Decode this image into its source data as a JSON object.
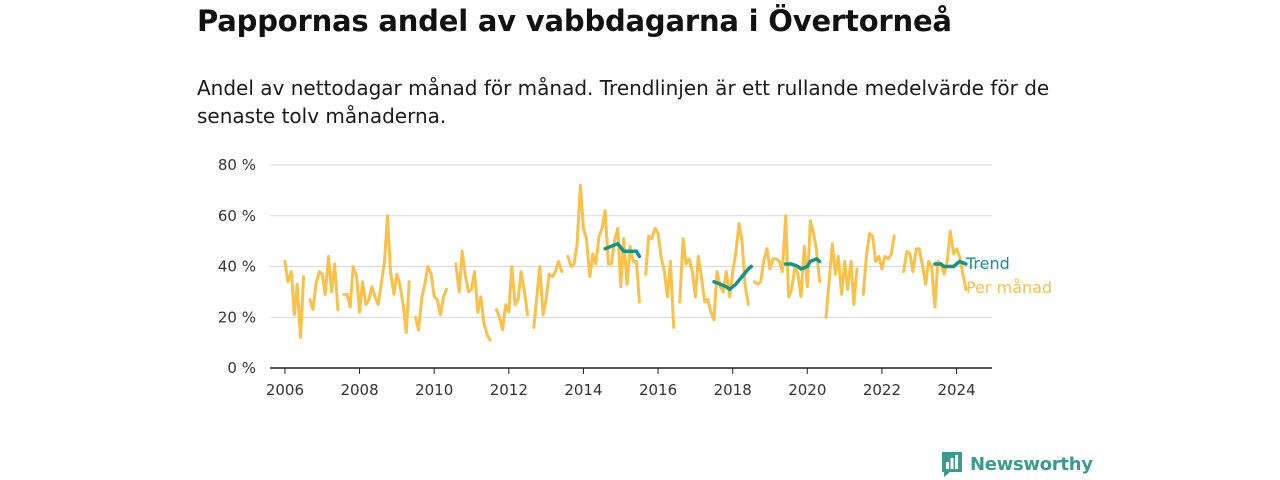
{
  "title": "Pappornas andel av vabbdagarna i Övertorneå",
  "subtitle": "Andel av nettodagar månad för månad. Trendlinjen är ett rullande medelvärde för de senaste tolv månaderna.",
  "brand": {
    "name": "Newsworthy",
    "color": "#3a9b8e"
  },
  "chart_data": {
    "type": "line",
    "ylim": [
      0,
      80
    ],
    "yticks": [
      0,
      20,
      40,
      60,
      80
    ],
    "ytick_labels": [
      "0 %",
      "20 %",
      "40 %",
      "60 %",
      "80 %"
    ],
    "xlim": [
      2005.6,
      2024.95
    ],
    "xticks": [
      2006,
      2008,
      2010,
      2012,
      2014,
      2016,
      2018,
      2020,
      2022,
      2024
    ],
    "xtick_labels": [
      "2006",
      "2008",
      "2010",
      "2012",
      "2014",
      "2016",
      "2018",
      "2020",
      "2022",
      "2024"
    ],
    "grid": true,
    "legend_placement": "right, at line ends",
    "series": [
      {
        "name": "Per månad",
        "color": "#f9c04a",
        "segments": [
          [
            [
              2006.0,
              42
            ],
            [
              2006.08,
              34
            ],
            [
              2006.17,
              38
            ],
            [
              2006.25,
              21
            ],
            [
              2006.33,
              33
            ],
            [
              2006.42,
              12
            ],
            [
              2006.5,
              36
            ]
          ],
          [
            [
              2006.67,
              27
            ],
            [
              2006.75,
              23
            ],
            [
              2006.83,
              33
            ],
            [
              2006.92,
              38
            ],
            [
              2007.0,
              37
            ],
            [
              2007.08,
              29
            ],
            [
              2007.17,
              44
            ],
            [
              2007.25,
              30
            ],
            [
              2007.33,
              41
            ],
            [
              2007.42,
              23
            ]
          ],
          [
            [
              2007.58,
              29
            ],
            [
              2007.67,
              29
            ],
            [
              2007.75,
              24
            ],
            [
              2007.83,
              40
            ],
            [
              2007.92,
              36
            ],
            [
              2008.0,
              22
            ],
            [
              2008.08,
              34
            ],
            [
              2008.17,
              25
            ],
            [
              2008.25,
              27
            ],
            [
              2008.33,
              32
            ],
            [
              2008.42,
              28
            ],
            [
              2008.5,
              25
            ],
            [
              2008.58,
              33
            ],
            [
              2008.67,
              42
            ],
            [
              2008.75,
              60
            ],
            [
              2008.83,
              38
            ],
            [
              2008.92,
              29
            ],
            [
              2009.0,
              37
            ],
            [
              2009.08,
              33
            ],
            [
              2009.17,
              25
            ],
            [
              2009.25,
              14
            ],
            [
              2009.33,
              34
            ]
          ],
          [
            [
              2009.5,
              20
            ],
            [
              2009.58,
              15
            ],
            [
              2009.67,
              28
            ],
            [
              2009.75,
              33
            ],
            [
              2009.83,
              40
            ],
            [
              2009.92,
              37
            ],
            [
              2010.0,
              28
            ],
            [
              2010.08,
              27
            ],
            [
              2010.17,
              21
            ],
            [
              2010.25,
              28
            ],
            [
              2010.33,
              31
            ]
          ],
          [
            [
              2010.58,
              41
            ],
            [
              2010.67,
              30
            ],
            [
              2010.75,
              46
            ],
            [
              2010.83,
              37
            ],
            [
              2010.92,
              30
            ],
            [
              2011.0,
              31
            ],
            [
              2011.08,
              38
            ],
            [
              2011.17,
              22
            ],
            [
              2011.25,
              28
            ],
            [
              2011.33,
              18
            ],
            [
              2011.42,
              13
            ],
            [
              2011.5,
              11
            ]
          ],
          [
            [
              2011.67,
              23
            ],
            [
              2011.75,
              20
            ],
            [
              2011.83,
              15
            ],
            [
              2011.92,
              25
            ],
            [
              2012.0,
              22
            ],
            [
              2012.08,
              40
            ],
            [
              2012.17,
              25
            ],
            [
              2012.25,
              27
            ],
            [
              2012.33,
              38
            ],
            [
              2012.42,
              30
            ],
            [
              2012.5,
              21
            ]
          ],
          [
            [
              2012.67,
              16
            ],
            [
              2012.75,
              28
            ],
            [
              2012.83,
              40
            ],
            [
              2012.92,
              21
            ],
            [
              2013.0,
              27
            ],
            [
              2013.08,
              37
            ],
            [
              2013.17,
              36
            ],
            [
              2013.25,
              38
            ],
            [
              2013.33,
              42
            ],
            [
              2013.42,
              38
            ]
          ],
          [
            [
              2013.58,
              44
            ],
            [
              2013.67,
              40
            ],
            [
              2013.75,
              41
            ],
            [
              2013.83,
              49
            ],
            [
              2013.92,
              72
            ],
            [
              2014.0,
              55
            ],
            [
              2014.08,
              51
            ],
            [
              2014.17,
              36
            ],
            [
              2014.25,
              45
            ],
            [
              2014.33,
              41
            ],
            [
              2014.42,
              52
            ],
            [
              2014.5,
              55
            ],
            [
              2014.58,
              62
            ],
            [
              2014.67,
              41
            ],
            [
              2014.75,
              41
            ],
            [
              2014.83,
              50
            ],
            [
              2014.92,
              55
            ],
            [
              2015.0,
              32
            ],
            [
              2015.08,
              51
            ],
            [
              2015.17,
              33
            ],
            [
              2015.25,
              48
            ],
            [
              2015.33,
              42
            ],
            [
              2015.42,
              42
            ],
            [
              2015.5,
              26
            ]
          ],
          [
            [
              2015.67,
              37
            ],
            [
              2015.75,
              52
            ],
            [
              2015.83,
              51
            ],
            [
              2015.92,
              55
            ],
            [
              2016.0,
              53
            ],
            [
              2016.08,
              44
            ],
            [
              2016.17,
              38
            ],
            [
              2016.25,
              28
            ],
            [
              2016.33,
              42
            ],
            [
              2016.42,
              16
            ]
          ],
          [
            [
              2016.58,
              26
            ],
            [
              2016.67,
              51
            ],
            [
              2016.75,
              41
            ],
            [
              2016.83,
              43
            ],
            [
              2016.92,
              38
            ],
            [
              2017.0,
              28
            ],
            [
              2017.08,
              44
            ],
            [
              2017.17,
              35
            ],
            [
              2017.25,
              26
            ],
            [
              2017.33,
              27
            ],
            [
              2017.42,
              22
            ],
            [
              2017.5,
              19
            ],
            [
              2017.58,
              38
            ],
            [
              2017.67,
              32
            ],
            [
              2017.75,
              30
            ],
            [
              2017.83,
              38
            ],
            [
              2017.92,
              28
            ],
            [
              2018.0,
              38
            ],
            [
              2018.08,
              45
            ],
            [
              2018.17,
              57
            ],
            [
              2018.25,
              50
            ],
            [
              2018.33,
              33
            ],
            [
              2018.42,
              25
            ]
          ],
          [
            [
              2018.58,
              34
            ],
            [
              2018.67,
              33
            ],
            [
              2018.75,
              34
            ],
            [
              2018.83,
              42
            ],
            [
              2018.92,
              47
            ],
            [
              2019.0,
              39
            ],
            [
              2019.08,
              43
            ],
            [
              2019.17,
              43
            ],
            [
              2019.25,
              42
            ],
            [
              2019.33,
              38
            ],
            [
              2019.42,
              60
            ],
            [
              2019.5,
              28
            ],
            [
              2019.58,
              31
            ],
            [
              2019.67,
              40
            ],
            [
              2019.75,
              37
            ],
            [
              2019.83,
              28
            ],
            [
              2019.92,
              48
            ],
            [
              2020.0,
              32
            ],
            [
              2020.08,
              58
            ],
            [
              2020.17,
              53
            ],
            [
              2020.25,
              46
            ],
            [
              2020.33,
              34
            ]
          ],
          [
            [
              2020.5,
              20
            ],
            [
              2020.58,
              33
            ],
            [
              2020.67,
              49
            ],
            [
              2020.75,
              37
            ],
            [
              2020.83,
              44
            ],
            [
              2020.92,
              29
            ],
            [
              2021.0,
              42
            ],
            [
              2021.08,
              31
            ],
            [
              2021.17,
              42
            ],
            [
              2021.25,
              25
            ],
            [
              2021.33,
              39
            ]
          ],
          [
            [
              2021.5,
              29
            ],
            [
              2021.58,
              44
            ],
            [
              2021.67,
              53
            ],
            [
              2021.75,
              52
            ],
            [
              2021.83,
              42
            ],
            [
              2021.92,
              44
            ],
            [
              2022.0,
              39
            ],
            [
              2022.08,
              44
            ],
            [
              2022.17,
              43
            ],
            [
              2022.25,
              45
            ],
            [
              2022.33,
              52
            ]
          ],
          [
            [
              2022.58,
              38
            ],
            [
              2022.67,
              46
            ],
            [
              2022.75,
              45
            ],
            [
              2022.83,
              38
            ],
            [
              2022.92,
              47
            ],
            [
              2023.0,
              47
            ],
            [
              2023.08,
              41
            ],
            [
              2023.17,
              33
            ],
            [
              2023.25,
              42
            ],
            [
              2023.33,
              40
            ],
            [
              2023.42,
              24
            ],
            [
              2023.5,
              42
            ],
            [
              2023.58,
              41
            ],
            [
              2023.67,
              37
            ],
            [
              2023.75,
              42
            ],
            [
              2023.83,
              54
            ],
            [
              2023.92,
              45
            ],
            [
              2024.0,
              47
            ],
            [
              2024.08,
              44
            ],
            [
              2024.17,
              37
            ],
            [
              2024.25,
              31
            ]
          ]
        ]
      },
      {
        "name": "Trend",
        "color": "#12948c",
        "segments": [
          [
            [
              2014.58,
              47
            ],
            [
              2014.75,
              48
            ],
            [
              2014.92,
              49
            ],
            [
              2015.08,
              46
            ],
            [
              2015.25,
              46
            ],
            [
              2015.42,
              46
            ],
            [
              2015.5,
              44
            ]
          ],
          [
            [
              2017.5,
              34
            ],
            [
              2017.67,
              33
            ],
            [
              2017.83,
              32
            ],
            [
              2017.92,
              31
            ],
            [
              2018.08,
              33
            ],
            [
              2018.25,
              36
            ],
            [
              2018.42,
              39
            ],
            [
              2018.5,
              40
            ]
          ],
          [
            [
              2019.42,
              41
            ],
            [
              2019.58,
              41
            ],
            [
              2019.75,
              40
            ],
            [
              2019.83,
              39
            ],
            [
              2020.0,
              40
            ],
            [
              2020.08,
              42
            ],
            [
              2020.25,
              43
            ],
            [
              2020.33,
              42
            ]
          ],
          [
            [
              2023.42,
              41
            ],
            [
              2023.58,
              41
            ],
            [
              2023.67,
              40
            ],
            [
              2023.83,
              40
            ],
            [
              2023.92,
              40
            ],
            [
              2024.08,
              42
            ],
            [
              2024.25,
              41
            ]
          ]
        ]
      }
    ]
  }
}
